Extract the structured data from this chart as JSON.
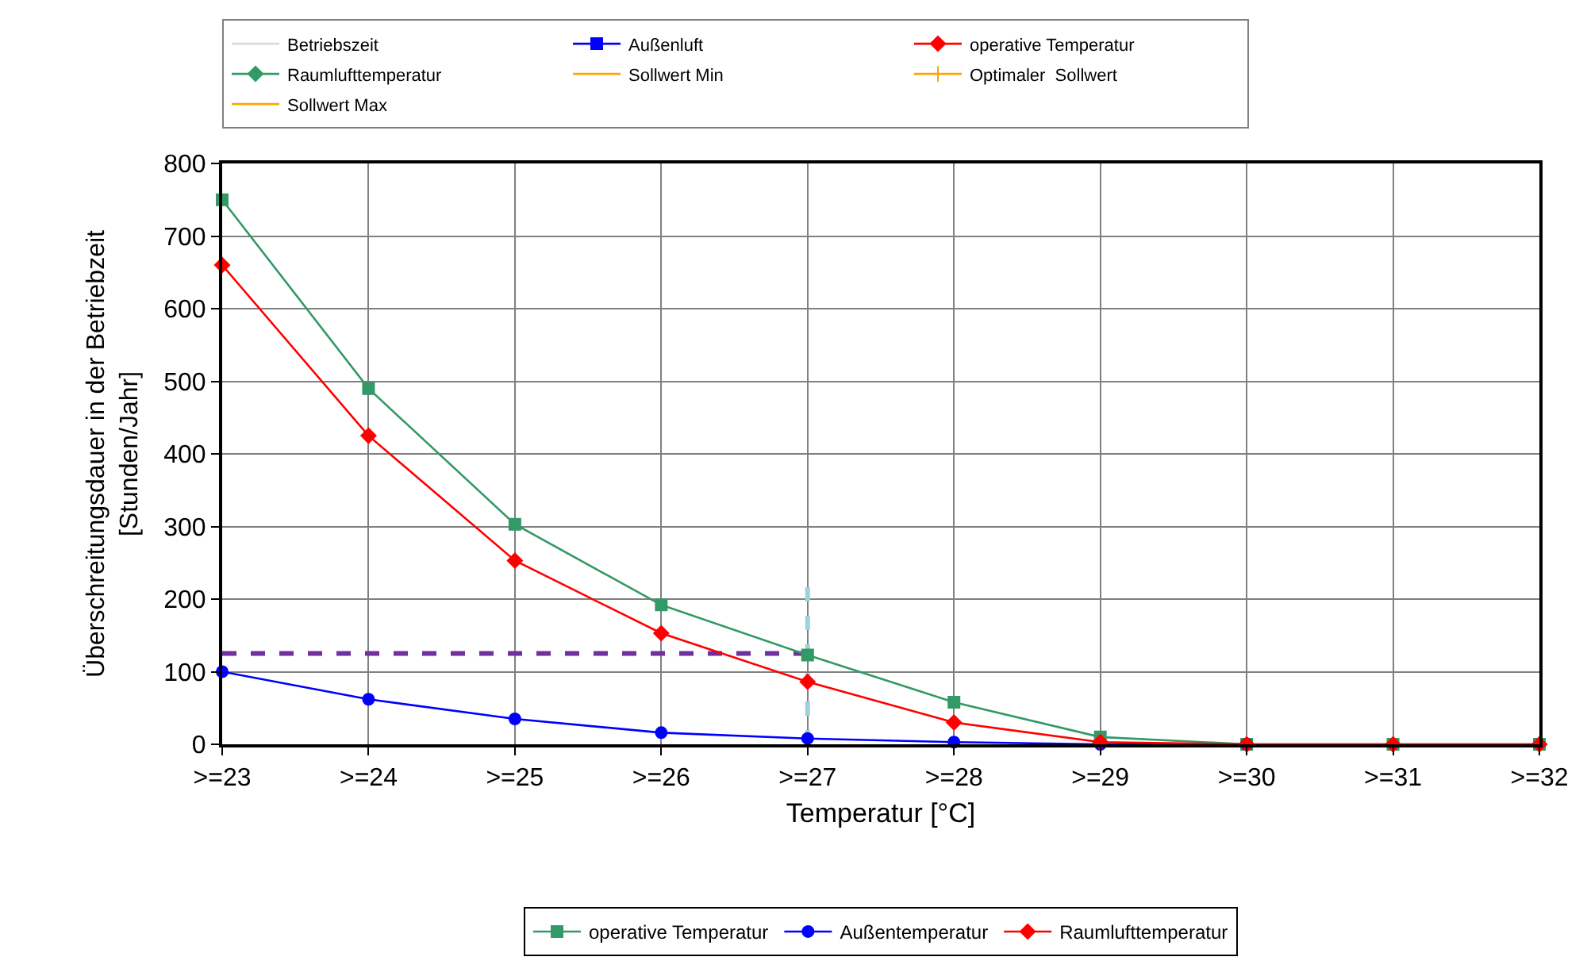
{
  "chart_data": {
    "type": "line",
    "xlabel": "Temperatur [°C]",
    "ylabel": "Überschreitungsdauer in der Betriebzeit\n[Stunden/Jahr]",
    "categories": [
      ">=23",
      ">=24",
      ">=25",
      ">=26",
      ">=27",
      ">=28",
      ">=29",
      ">=30",
      ">=31",
      ">=32"
    ],
    "ylim": [
      0,
      800
    ],
    "yticks": [
      0,
      100,
      200,
      300,
      400,
      500,
      600,
      700,
      800
    ],
    "grid": true,
    "legend": "bottom",
    "series": [
      {
        "name": "Betriebszeit",
        "color": "#d9d9d9",
        "marker": "none",
        "values": [
          null,
          null,
          null,
          null,
          null,
          null,
          null,
          null,
          null,
          null
        ]
      },
      {
        "name": "Außenluft",
        "color": "#0000ff",
        "marker": "square",
        "values": [
          null,
          null,
          null,
          null,
          null,
          null,
          null,
          null,
          null,
          null
        ]
      },
      {
        "name": "operative Temperatur",
        "color": "#ff0000",
        "marker": "diamond",
        "values": [
          null,
          null,
          null,
          null,
          null,
          null,
          null,
          null,
          null,
          null
        ]
      },
      {
        "name": "Raumlufttemperatur",
        "color": "#339966",
        "marker": "diamond",
        "values": [
          null,
          null,
          null,
          null,
          null,
          null,
          null,
          null,
          null,
          null
        ]
      },
      {
        "name": "Sollwert Min",
        "color": "#ffa500",
        "marker": "none",
        "values": [
          null,
          null,
          null,
          null,
          null,
          null,
          null,
          null,
          null,
          null
        ]
      },
      {
        "name": "Optimaler  Sollwert",
        "color": "#ffa500",
        "marker": "cross",
        "values": [
          null,
          null,
          null,
          null,
          null,
          null,
          null,
          null,
          null,
          null
        ]
      },
      {
        "name": "Sollwert Max",
        "color": "#ffa500",
        "marker": "none",
        "values": [
          null,
          null,
          null,
          null,
          null,
          null,
          null,
          null,
          null,
          null
        ]
      },
      {
        "x": [
          ">=23",
          ">=27"
        ],
        "color": "#7030a0",
        "marker": "none",
        "line_style": "dashed",
        "values": [
          125,
          125
        ]
      },
      {
        "x": [
          ">=27",
          ">=27"
        ],
        "color": "#9dd3d8",
        "marker": "none",
        "line_style": "dashed",
        "values": [
          0,
          225
        ]
      },
      {
        "name": "operative Temperatur",
        "color": "#339966",
        "marker": "square",
        "values": [
          750,
          490,
          303,
          192,
          123,
          58,
          10,
          0,
          0,
          0
        ]
      },
      {
        "name": "Außentemperatur",
        "color": "#0000ff",
        "marker": "circle",
        "values": [
          100,
          62,
          35,
          16,
          8,
          3,
          0,
          0,
          null,
          null
        ]
      },
      {
        "name": "Raumlufttemperatur",
        "color": "#ff0000",
        "marker": "diamond",
        "values": [
          660,
          425,
          253,
          153,
          86,
          30,
          3,
          0,
          0,
          0
        ]
      }
    ]
  }
}
